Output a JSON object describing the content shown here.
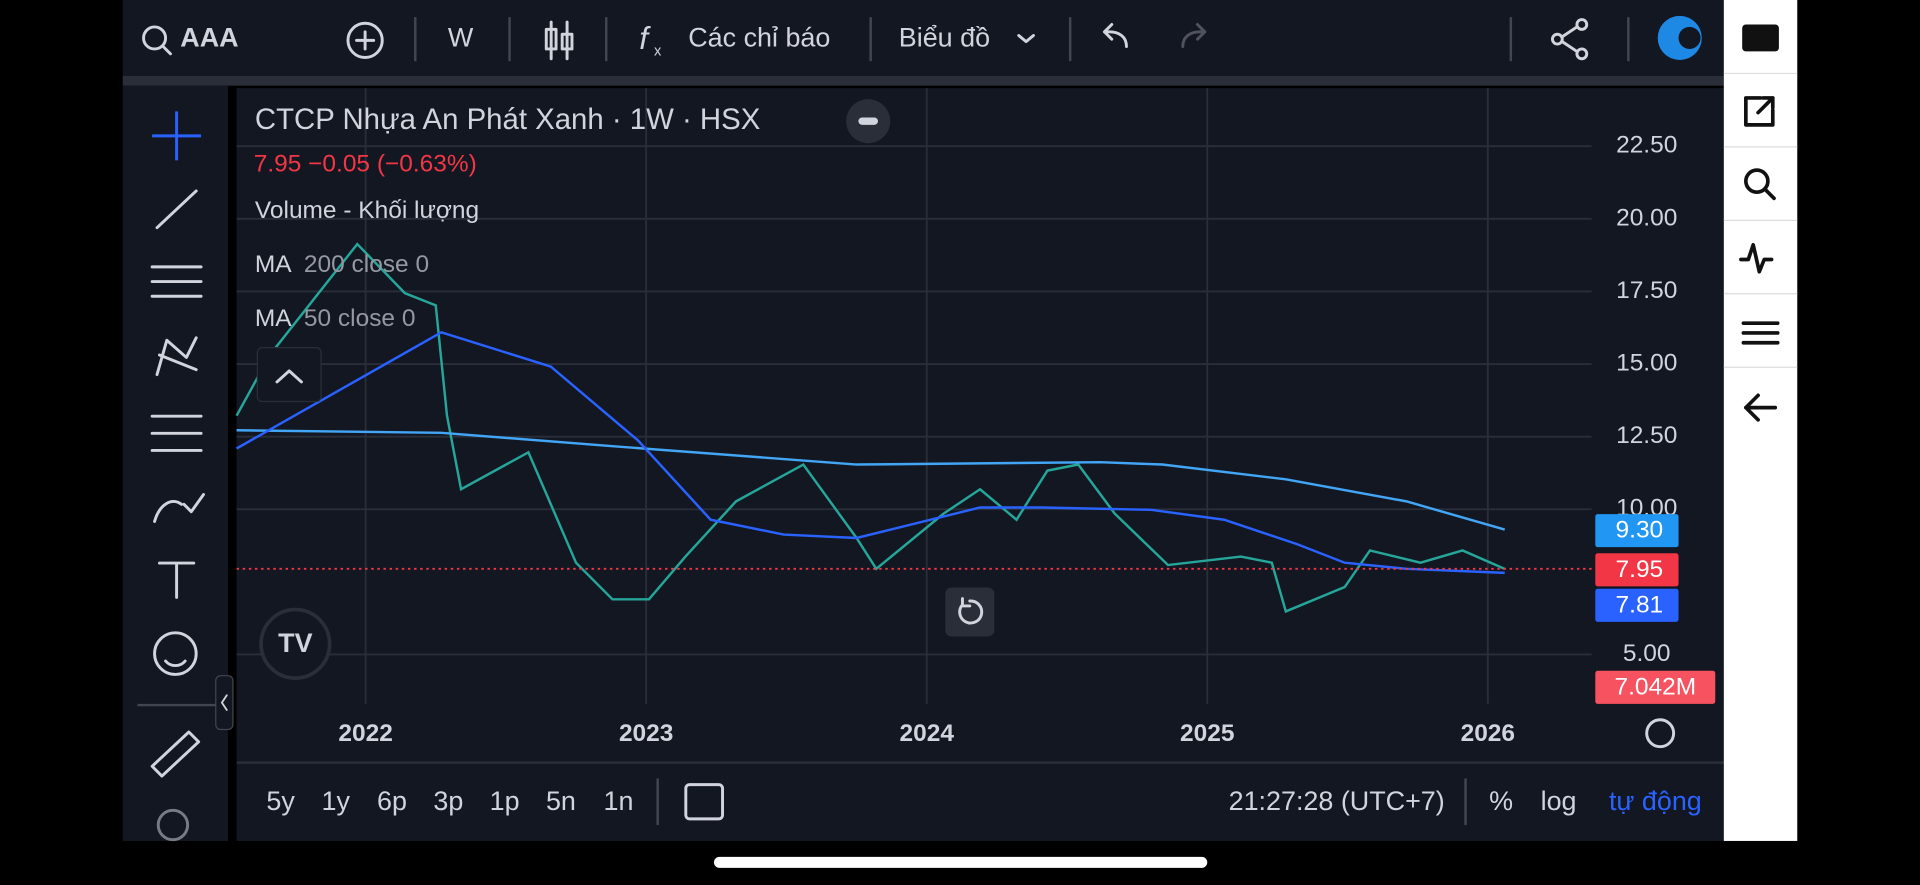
{
  "toolbar": {
    "symbol": "AAA",
    "interval": "W",
    "indicators": "Các chỉ báo",
    "chart_menu": "Biểu đồ"
  },
  "legend": {
    "title": "CTCP Nhựa An Phát Xanh · 1W · HSX",
    "quote": "7.95  −0.05 (−0.63%)",
    "volume": "Volume - Khối lượng",
    "ma200_name": "MA",
    "ma200_params": "200 close 0",
    "ma50_name": "MA",
    "ma50_params": "50 close 0"
  },
  "chart_data": {
    "type": "line",
    "xlim": [
      2021.54,
      2026.37
    ],
    "ylim": [
      3.3,
      24.5
    ],
    "xticks": [
      2022,
      2023,
      2024,
      2025,
      2026
    ],
    "yticks": [
      {
        "value": 5,
        "label": "5.00"
      },
      {
        "value": 10,
        "label": "10.00"
      },
      {
        "value": 12.5,
        "label": "12.50"
      },
      {
        "value": 15,
        "label": "15.00"
      },
      {
        "value": 17.5,
        "label": "17.50"
      },
      {
        "value": 20,
        "label": "20.00"
      },
      {
        "value": 22.5,
        "label": "22.50"
      }
    ],
    "grid": true,
    "series": [
      {
        "color": "#26a69a",
        "x": [
          2021.54,
          2021.66,
          2021.97,
          2022.14,
          2022.25,
          2022.29,
          2022.34,
          2022.58,
          2022.75,
          2022.88,
          2023.01,
          2023.14,
          2023.32,
          2023.56,
          2023.75,
          2023.82,
          2024.06,
          2024.19,
          2024.32,
          2024.43,
          2024.54,
          2024.67,
          2024.86,
          2025.12,
          2025.23,
          2025.28,
          2025.49,
          2025.58,
          2025.76,
          2025.91,
          2026.06
        ],
        "values": [
          13.22,
          15.33,
          19.13,
          17.44,
          17.02,
          13.22,
          10.69,
          11.96,
          8.16,
          6.9,
          6.9,
          8.37,
          10.27,
          11.54,
          9.01,
          7.95,
          9.85,
          10.69,
          9.64,
          11.33,
          11.54,
          9.85,
          8.08,
          8.37,
          8.16,
          6.48,
          7.32,
          8.58,
          8.16,
          8.58,
          7.95
        ]
      },
      {
        "color": "#42a5f5",
        "x": [
          2021.54,
          2022.27,
          2022.88,
          2023.75,
          2024.62,
          2024.84,
          2025.28,
          2025.71,
          2026.06
        ],
        "values": [
          12.72,
          12.63,
          12.17,
          11.54,
          11.62,
          11.54,
          11.03,
          10.27,
          9.3
        ]
      },
      {
        "color": "#2962ff",
        "x": [
          2021.54,
          2022.27,
          2022.66,
          2022.97,
          2023.23,
          2023.49,
          2023.75,
          2024.19,
          2024.41,
          2024.8,
          2025.06,
          2025.32,
          2025.49,
          2025.71,
          2026.06
        ],
        "values": [
          12.09,
          16.09,
          14.91,
          12.38,
          9.64,
          9.13,
          9.01,
          10.06,
          10.06,
          9.98,
          9.64,
          8.8,
          8.16,
          7.95,
          7.81
        ]
      }
    ]
  },
  "price_tags": [
    "9.30",
    "7.95",
    "7.81",
    "7.042M"
  ],
  "footer": {
    "ranges": [
      "5y",
      "1y",
      "6p",
      "3p",
      "1p",
      "5n",
      "1n"
    ],
    "time": "21:27:28 (UTC+7)",
    "percent": "%",
    "log": "log",
    "auto": "tự động"
  }
}
